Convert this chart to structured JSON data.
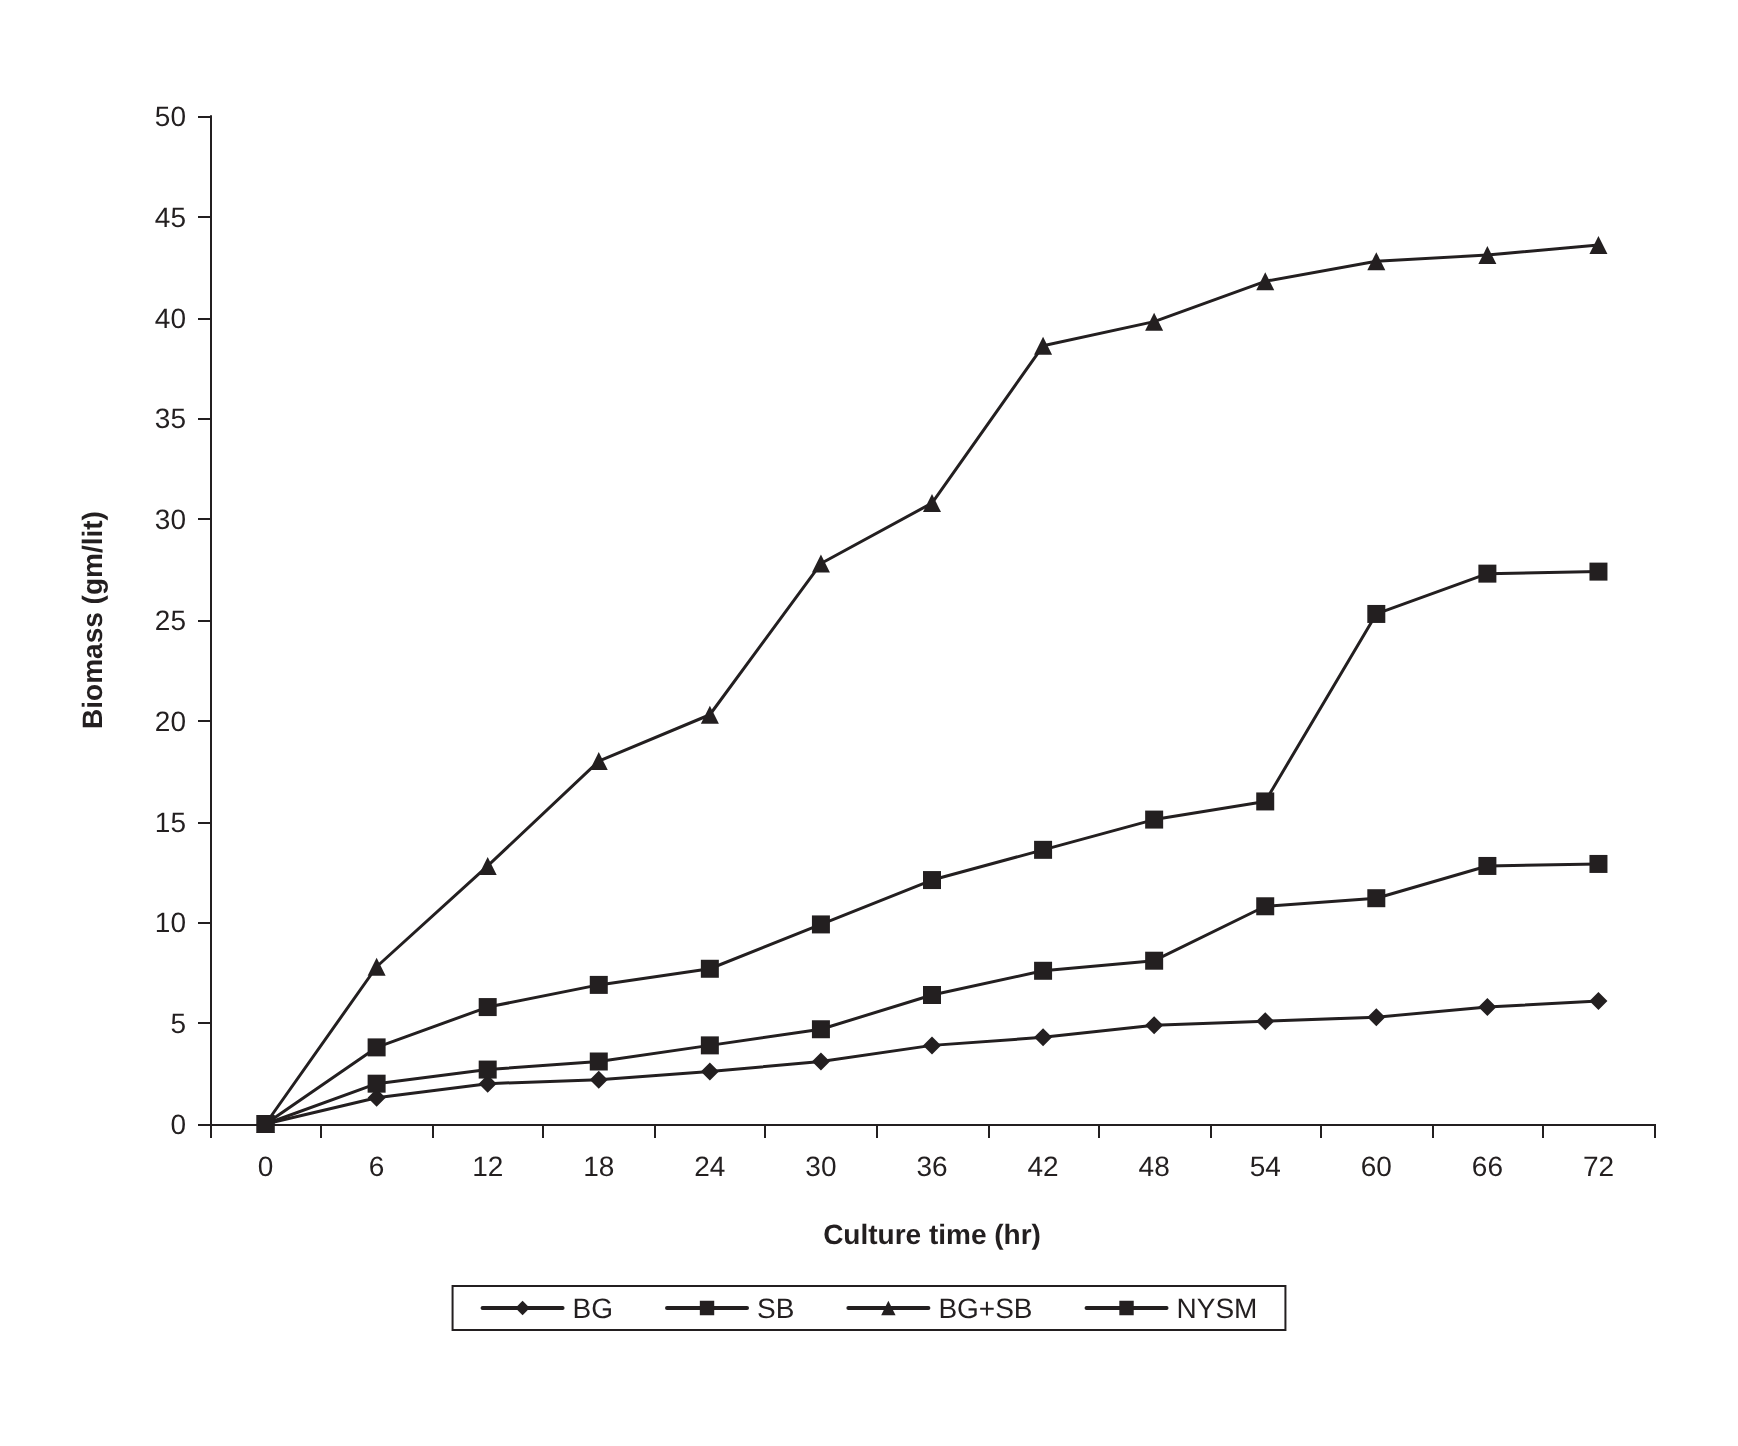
{
  "chart_data": {
    "type": "line",
    "xlabel": "Culture time (hr)",
    "ylabel": "Biomass (gm/lit)",
    "categories": [
      "0",
      "6",
      "12",
      "18",
      "24",
      "30",
      "36",
      "42",
      "48",
      "54",
      "60",
      "66",
      "72"
    ],
    "ylim": [
      0,
      50
    ],
    "yticks": [
      0,
      5,
      10,
      15,
      20,
      25,
      30,
      35,
      40,
      45,
      50
    ],
    "grid": false,
    "legend": "bottom",
    "line_style": "solid",
    "series": [
      {
        "name": "BG",
        "color": "#231f20",
        "marker": "diamond",
        "values": [
          0,
          1.3,
          2.0,
          2.2,
          2.6,
          3.1,
          3.9,
          4.3,
          4.9,
          5.1,
          5.3,
          5.8,
          6.1
        ]
      },
      {
        "name": "SB",
        "color": "#231f20",
        "marker": "square",
        "values": [
          0,
          2.0,
          2.7,
          3.1,
          3.9,
          4.7,
          6.4,
          7.6,
          8.1,
          10.8,
          11.2,
          12.8,
          12.9
        ]
      },
      {
        "name": "BG+SB",
        "color": "#231f20",
        "marker": "triangle",
        "values": [
          0,
          7.8,
          12.8,
          18.0,
          20.3,
          27.8,
          30.8,
          38.6,
          39.8,
          41.8,
          42.8,
          43.1,
          43.6
        ]
      },
      {
        "name": "NYSM",
        "color": "#231f20",
        "marker": "square",
        "values": [
          0,
          3.8,
          5.8,
          6.9,
          7.7,
          9.9,
          12.1,
          13.6,
          15.1,
          16.0,
          25.3,
          27.3,
          27.4
        ]
      }
    ]
  }
}
